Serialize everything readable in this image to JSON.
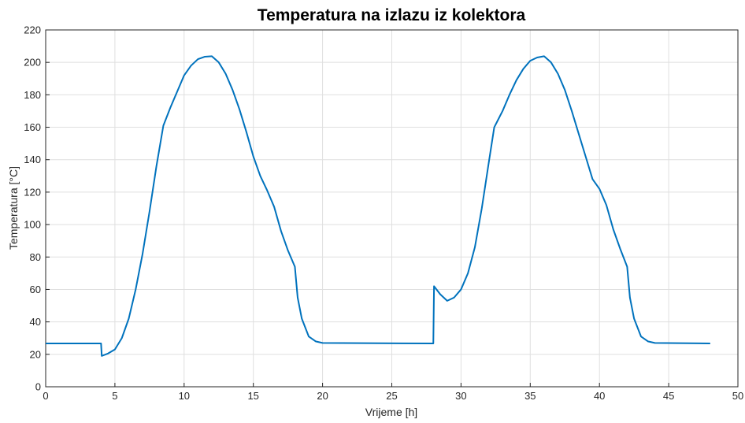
{
  "chart_data": {
    "type": "line",
    "title": "Temperatura na izlazu iz kolektora",
    "xlabel": "Vrijeme [h]",
    "ylabel": "Temperatura [°C]",
    "x": [
      0,
      4.0,
      4.05,
      4.5,
      5,
      5.5,
      6,
      6.5,
      7,
      7.5,
      8,
      8.5,
      9,
      9.5,
      10,
      10.5,
      11,
      11.5,
      12,
      12.5,
      13,
      13.5,
      14,
      14.5,
      15,
      15.5,
      16,
      16.5,
      17,
      17.5,
      18,
      18.2,
      18.5,
      19,
      19.5,
      20,
      28,
      28.05,
      28.5,
      29,
      29.5,
      30,
      30.5,
      31,
      31.5,
      32,
      32.4,
      33,
      33.5,
      34,
      34.5,
      35,
      35.5,
      36,
      36.5,
      37,
      37.5,
      38,
      38.5,
      39,
      39.5,
      40,
      40.5,
      41,
      41.5,
      42,
      42.2,
      42.5,
      43,
      43.5,
      44,
      48
    ],
    "series": [
      {
        "name": "Temperatura",
        "color": "#0072bd",
        "values": [
          26.7,
          26.7,
          19,
          20.5,
          23,
          30,
          42,
          60,
          82,
          108,
          136,
          161,
          172,
          182,
          192,
          198,
          202,
          203.5,
          203.8,
          200,
          193,
          183,
          171,
          157,
          142,
          130,
          121,
          111,
          96,
          84,
          74,
          55,
          42,
          31,
          28,
          27,
          26.7,
          62,
          57,
          53,
          55,
          60,
          70,
          86,
          110,
          138,
          160,
          170,
          180,
          189,
          196,
          201,
          203,
          203.8,
          200,
          193,
          183,
          170,
          156,
          142,
          128,
          122,
          112,
          97,
          85,
          74,
          55,
          42,
          31,
          28,
          27,
          26.7
        ]
      }
    ],
    "xlim": [
      0,
      50
    ],
    "xticks": [
      0,
      5,
      10,
      15,
      20,
      25,
      30,
      35,
      40,
      45,
      50
    ],
    "ylim": [
      0,
      220
    ],
    "yticks": [
      0,
      20,
      40,
      60,
      80,
      100,
      120,
      140,
      160,
      180,
      200,
      220
    ],
    "grid": true
  }
}
